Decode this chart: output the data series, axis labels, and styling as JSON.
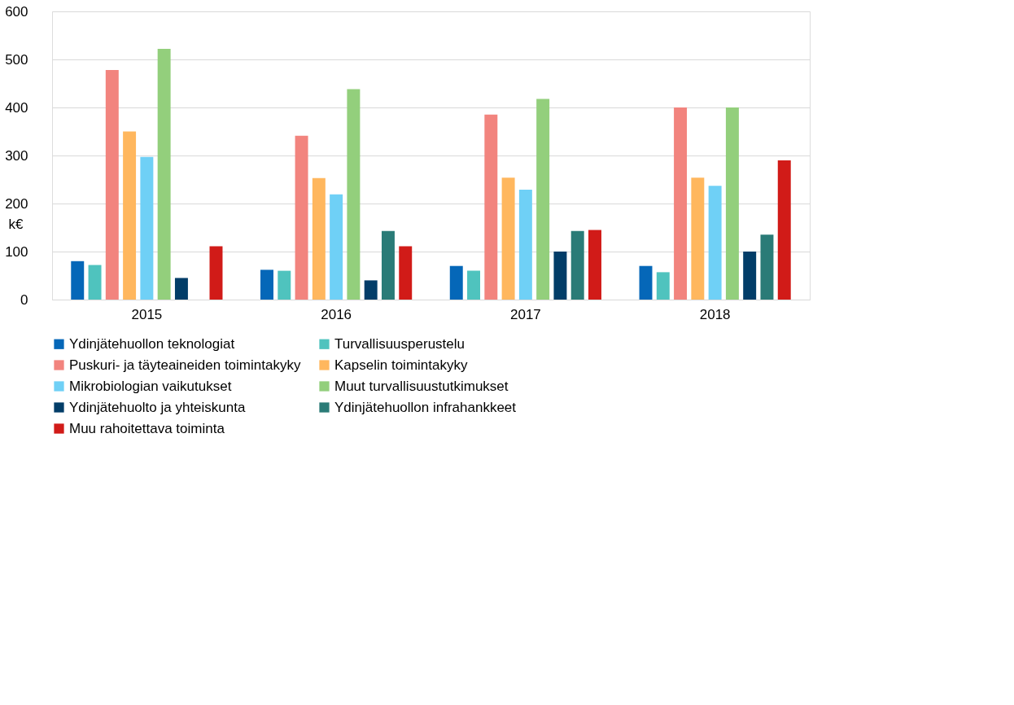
{
  "chart_data": {
    "type": "bar",
    "ylabel": "k€",
    "categories": [
      "2015",
      "2016",
      "2017",
      "2018"
    ],
    "series": [
      {
        "name": "Ydinjätehuollon teknologiat",
        "color": "#0567b8",
        "values": [
          80,
          62,
          70,
          70
        ]
      },
      {
        "name": "Turvallisuusperustelu",
        "color": "#4fc3be",
        "values": [
          72,
          60,
          60,
          57
        ]
      },
      {
        "name": "Puskuri- ja täyteaineiden toimintakyky",
        "color": "#f2847e",
        "values": [
          478,
          341,
          385,
          400
        ]
      },
      {
        "name": "Kapselin toimintakyky",
        "color": "#ffb75e",
        "values": [
          350,
          253,
          254,
          254
        ]
      },
      {
        "name": "Mikrobiologian vaikutukset",
        "color": "#6fd0f6",
        "values": [
          297,
          219,
          229,
          237
        ]
      },
      {
        "name": "Muut turvallisuustutkimukset",
        "color": "#93cf7c",
        "values": [
          522,
          438,
          418,
          400
        ]
      },
      {
        "name": "Ydinjätehuolto ja yhteiskunta",
        "color": "#023d68",
        "values": [
          45,
          40,
          100,
          100
        ]
      },
      {
        "name": "Ydinjätehuollon infrahankkeet",
        "color": "#2a7b77",
        "values": [
          null,
          143,
          143,
          135
        ]
      },
      {
        "name": "Muu rahoitettava toiminta",
        "color": "#d11b18",
        "values": [
          111,
          111,
          145,
          290
        ]
      }
    ],
    "ylim": [
      0,
      600
    ],
    "yticks": [
      0,
      100,
      200,
      300,
      400,
      500,
      600
    ],
    "grid": "y",
    "legend": "bottom"
  }
}
